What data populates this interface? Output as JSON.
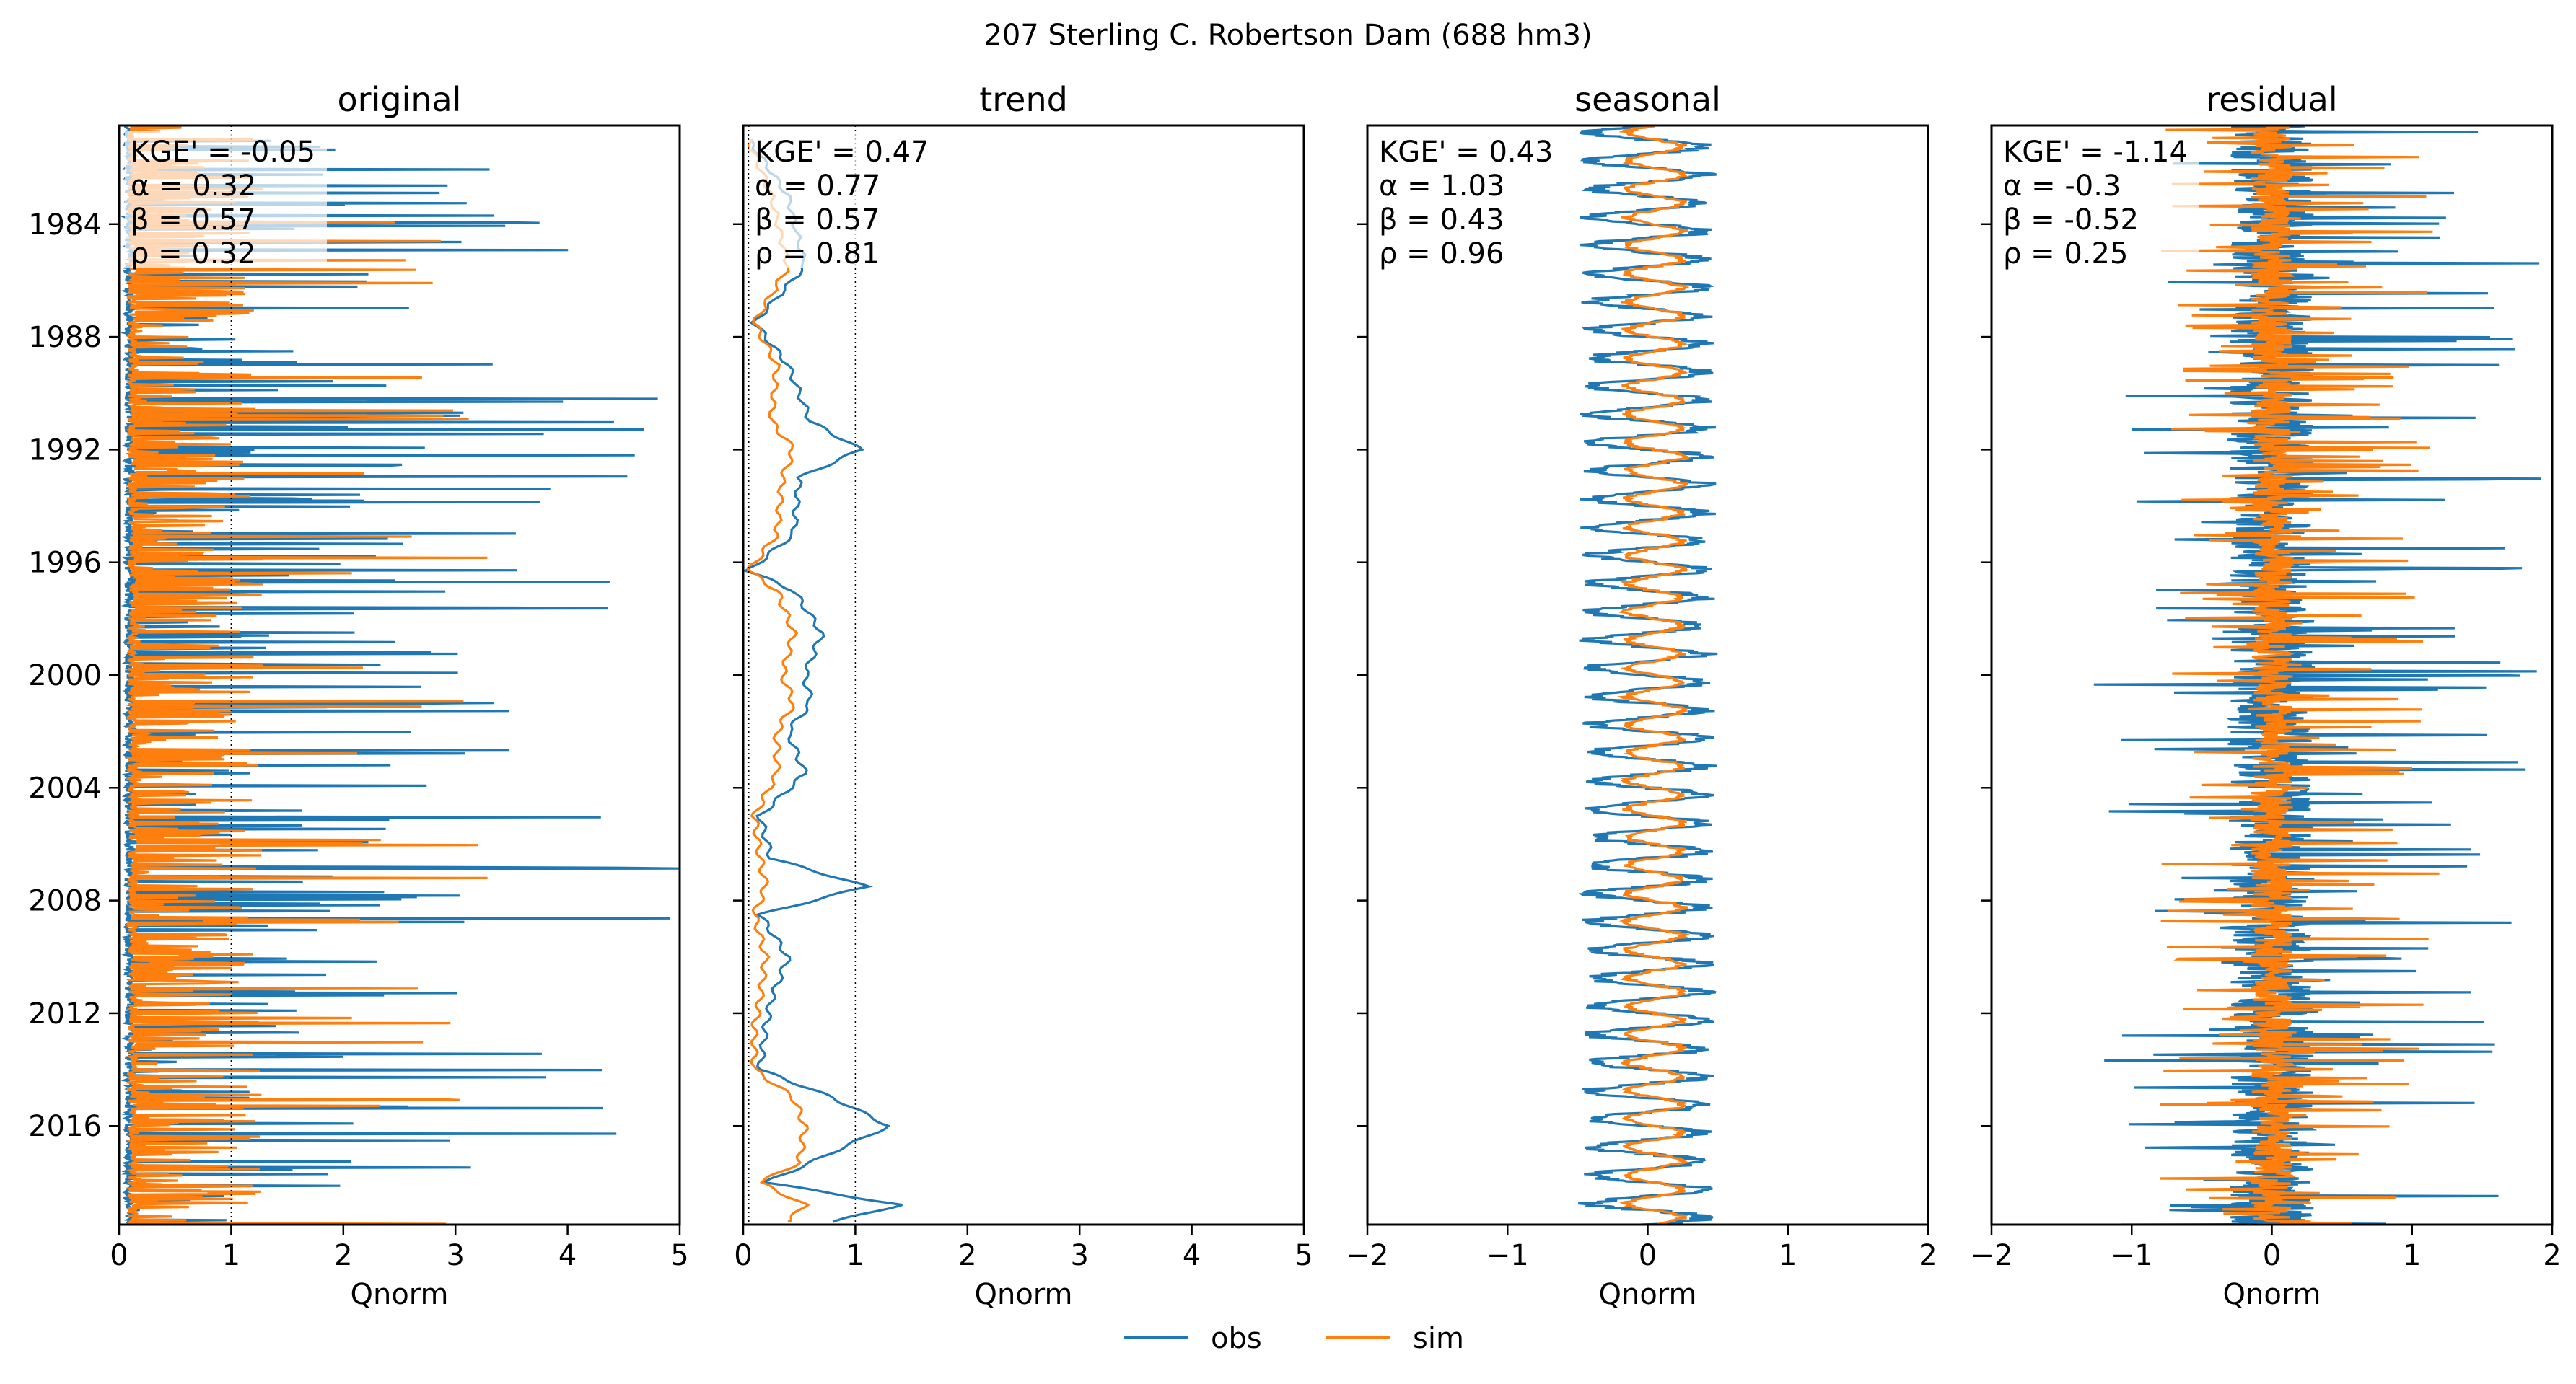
{
  "suptitle": "207  Sterling C. Robertson Dam (688 hm3)",
  "colors": {
    "obs": "#1f77b4",
    "sim": "#ff7f0e",
    "obs_light": "#a9c8e2",
    "sim_light": "#ffd0a8"
  },
  "legend": {
    "placement": "bottom-center",
    "items": [
      {
        "label": "obs",
        "color": "#1f77b4"
      },
      {
        "label": "sim",
        "color": "#ff7f0e"
      }
    ]
  },
  "chart_data": [
    {
      "type": "line",
      "title": "original",
      "xlabel": "Qnorm",
      "xlim": [
        0,
        5
      ],
      "xticks": [
        "0",
        "1",
        "2",
        "3",
        "4",
        "5"
      ],
      "ylim": [
        1980.5,
        2019.5
      ],
      "yticks": [
        "1984",
        "1988",
        "1992",
        "1996",
        "2000",
        "2004",
        "2008",
        "2012",
        "2016"
      ],
      "reference_lines_x": [
        1
      ],
      "stats": [
        "KGE' = -0.05",
        "α = 0.32",
        "β = 0.57",
        "ρ = 0.32"
      ],
      "series": [
        {
          "name": "obs",
          "style": "spiky",
          "base": 0.05,
          "scale": 1.4,
          "freq": 0.12,
          "max": 5,
          "seed": 11
        },
        {
          "name": "sim",
          "style": "spiky",
          "base": 0.08,
          "scale": 0.55,
          "freq": 0.35,
          "max": 3.3,
          "seed": 23
        }
      ]
    },
    {
      "type": "line",
      "title": "trend",
      "xlabel": "Qnorm",
      "xlim": [
        0,
        5
      ],
      "xticks": [
        "0",
        "1",
        "2",
        "3",
        "4",
        "5"
      ],
      "ylim": [
        1980.5,
        2019.5
      ],
      "yticks": [
        "1984",
        "1988",
        "1992",
        "1996",
        "2000",
        "2004",
        "2008",
        "2012",
        "2016"
      ],
      "reference_lines_x": [
        0.05,
        1
      ],
      "stats": [
        "KGE' = 0.47",
        "α = 0.77",
        "β = 0.57",
        "ρ = 0.81"
      ],
      "series": [
        {
          "name": "obs",
          "style": "smooth",
          "points": [
            [
              1981,
              0.05
            ],
            [
              1983,
              0.4
            ],
            [
              1985.5,
              0.55
            ],
            [
              1987.5,
              0.1
            ],
            [
              1989,
              0.4
            ],
            [
              1991,
              0.6
            ],
            [
              1992,
              1.05
            ],
            [
              1993,
              0.5
            ],
            [
              1995,
              0.45
            ],
            [
              1996.3,
              0.05
            ],
            [
              1997,
              0.45
            ],
            [
              1998.5,
              0.7
            ],
            [
              2000,
              0.55
            ],
            [
              2001,
              0.6
            ],
            [
              2002,
              0.4
            ],
            [
              2003.5,
              0.55
            ],
            [
              2005,
              0.15
            ],
            [
              2006.5,
              0.25
            ],
            [
              2007.5,
              1.1
            ],
            [
              2008.5,
              0.15
            ],
            [
              2010,
              0.4
            ],
            [
              2011.5,
              0.25
            ],
            [
              2012.5,
              0.2
            ],
            [
              2014,
              0.15
            ],
            [
              2015,
              0.8
            ],
            [
              2016,
              1.3
            ],
            [
              2017.3,
              0.6
            ],
            [
              2018,
              0.2
            ],
            [
              2018.8,
              1.4
            ],
            [
              2019.4,
              0.8
            ]
          ]
        },
        {
          "name": "sim",
          "style": "smooth",
          "points": [
            [
              1981,
              0.05
            ],
            [
              1983,
              0.25
            ],
            [
              1985.5,
              0.4
            ],
            [
              1987.5,
              0.1
            ],
            [
              1989,
              0.3
            ],
            [
              1991,
              0.25
            ],
            [
              1992,
              0.45
            ],
            [
              1993,
              0.35
            ],
            [
              1995,
              0.3
            ],
            [
              1996.3,
              0.05
            ],
            [
              1997,
              0.3
            ],
            [
              1998.5,
              0.45
            ],
            [
              2000,
              0.35
            ],
            [
              2001,
              0.45
            ],
            [
              2002,
              0.3
            ],
            [
              2003.5,
              0.3
            ],
            [
              2005,
              0.1
            ],
            [
              2006.5,
              0.15
            ],
            [
              2007.5,
              0.2
            ],
            [
              2008.5,
              0.1
            ],
            [
              2010,
              0.2
            ],
            [
              2011.5,
              0.15
            ],
            [
              2012.5,
              0.1
            ],
            [
              2014,
              0.1
            ],
            [
              2015,
              0.45
            ],
            [
              2016,
              0.55
            ],
            [
              2017.3,
              0.5
            ],
            [
              2018,
              0.15
            ],
            [
              2018.8,
              0.55
            ],
            [
              2019.4,
              0.4
            ]
          ]
        }
      ]
    },
    {
      "type": "line",
      "title": "seasonal",
      "xlabel": "Qnorm",
      "xlim": [
        -2,
        2
      ],
      "xticks": [
        "−2",
        "−1",
        "0",
        "1",
        "2"
      ],
      "ylim": [
        1980.5,
        2019.5
      ],
      "yticks": [
        "1984",
        "1988",
        "1992",
        "1996",
        "2000",
        "2004",
        "2008",
        "2012",
        "2016"
      ],
      "reference_lines_x": [],
      "stats": [
        "KGE' = 0.43",
        "α = 1.03",
        "β = 0.43",
        "ρ = 0.96"
      ],
      "series": [
        {
          "name": "obs",
          "style": "periodic",
          "amp": 0.4,
          "offset": 0.0,
          "period": 1,
          "jitter": 0.1,
          "seed": 5
        },
        {
          "name": "sim",
          "style": "periodic",
          "amp": 0.2,
          "offset": 0.05,
          "period": 1,
          "jitter": 0.04,
          "seed": 7
        }
      ]
    },
    {
      "type": "line",
      "title": "residual",
      "xlabel": "Qnorm",
      "xlim": [
        -2,
        2
      ],
      "xticks": [
        "−2",
        "−1",
        "0",
        "1",
        "2"
      ],
      "ylim": [
        1980.5,
        2019.5
      ],
      "yticks": [
        "1984",
        "1988",
        "1992",
        "1996",
        "2000",
        "2004",
        "2008",
        "2012",
        "2016"
      ],
      "reference_lines_x": [],
      "stats": [
        "KGE' = -1.14",
        "α = -0.3",
        "β = -0.52",
        "ρ = 0.25"
      ],
      "series": [
        {
          "name": "obs",
          "style": "residual",
          "spread": 0.6,
          "spike": 1.6,
          "freq": 0.12,
          "seed": 41
        },
        {
          "name": "sim",
          "style": "residual",
          "spread": 0.3,
          "spike": 1.0,
          "freq": 0.15,
          "seed": 57
        }
      ]
    }
  ]
}
